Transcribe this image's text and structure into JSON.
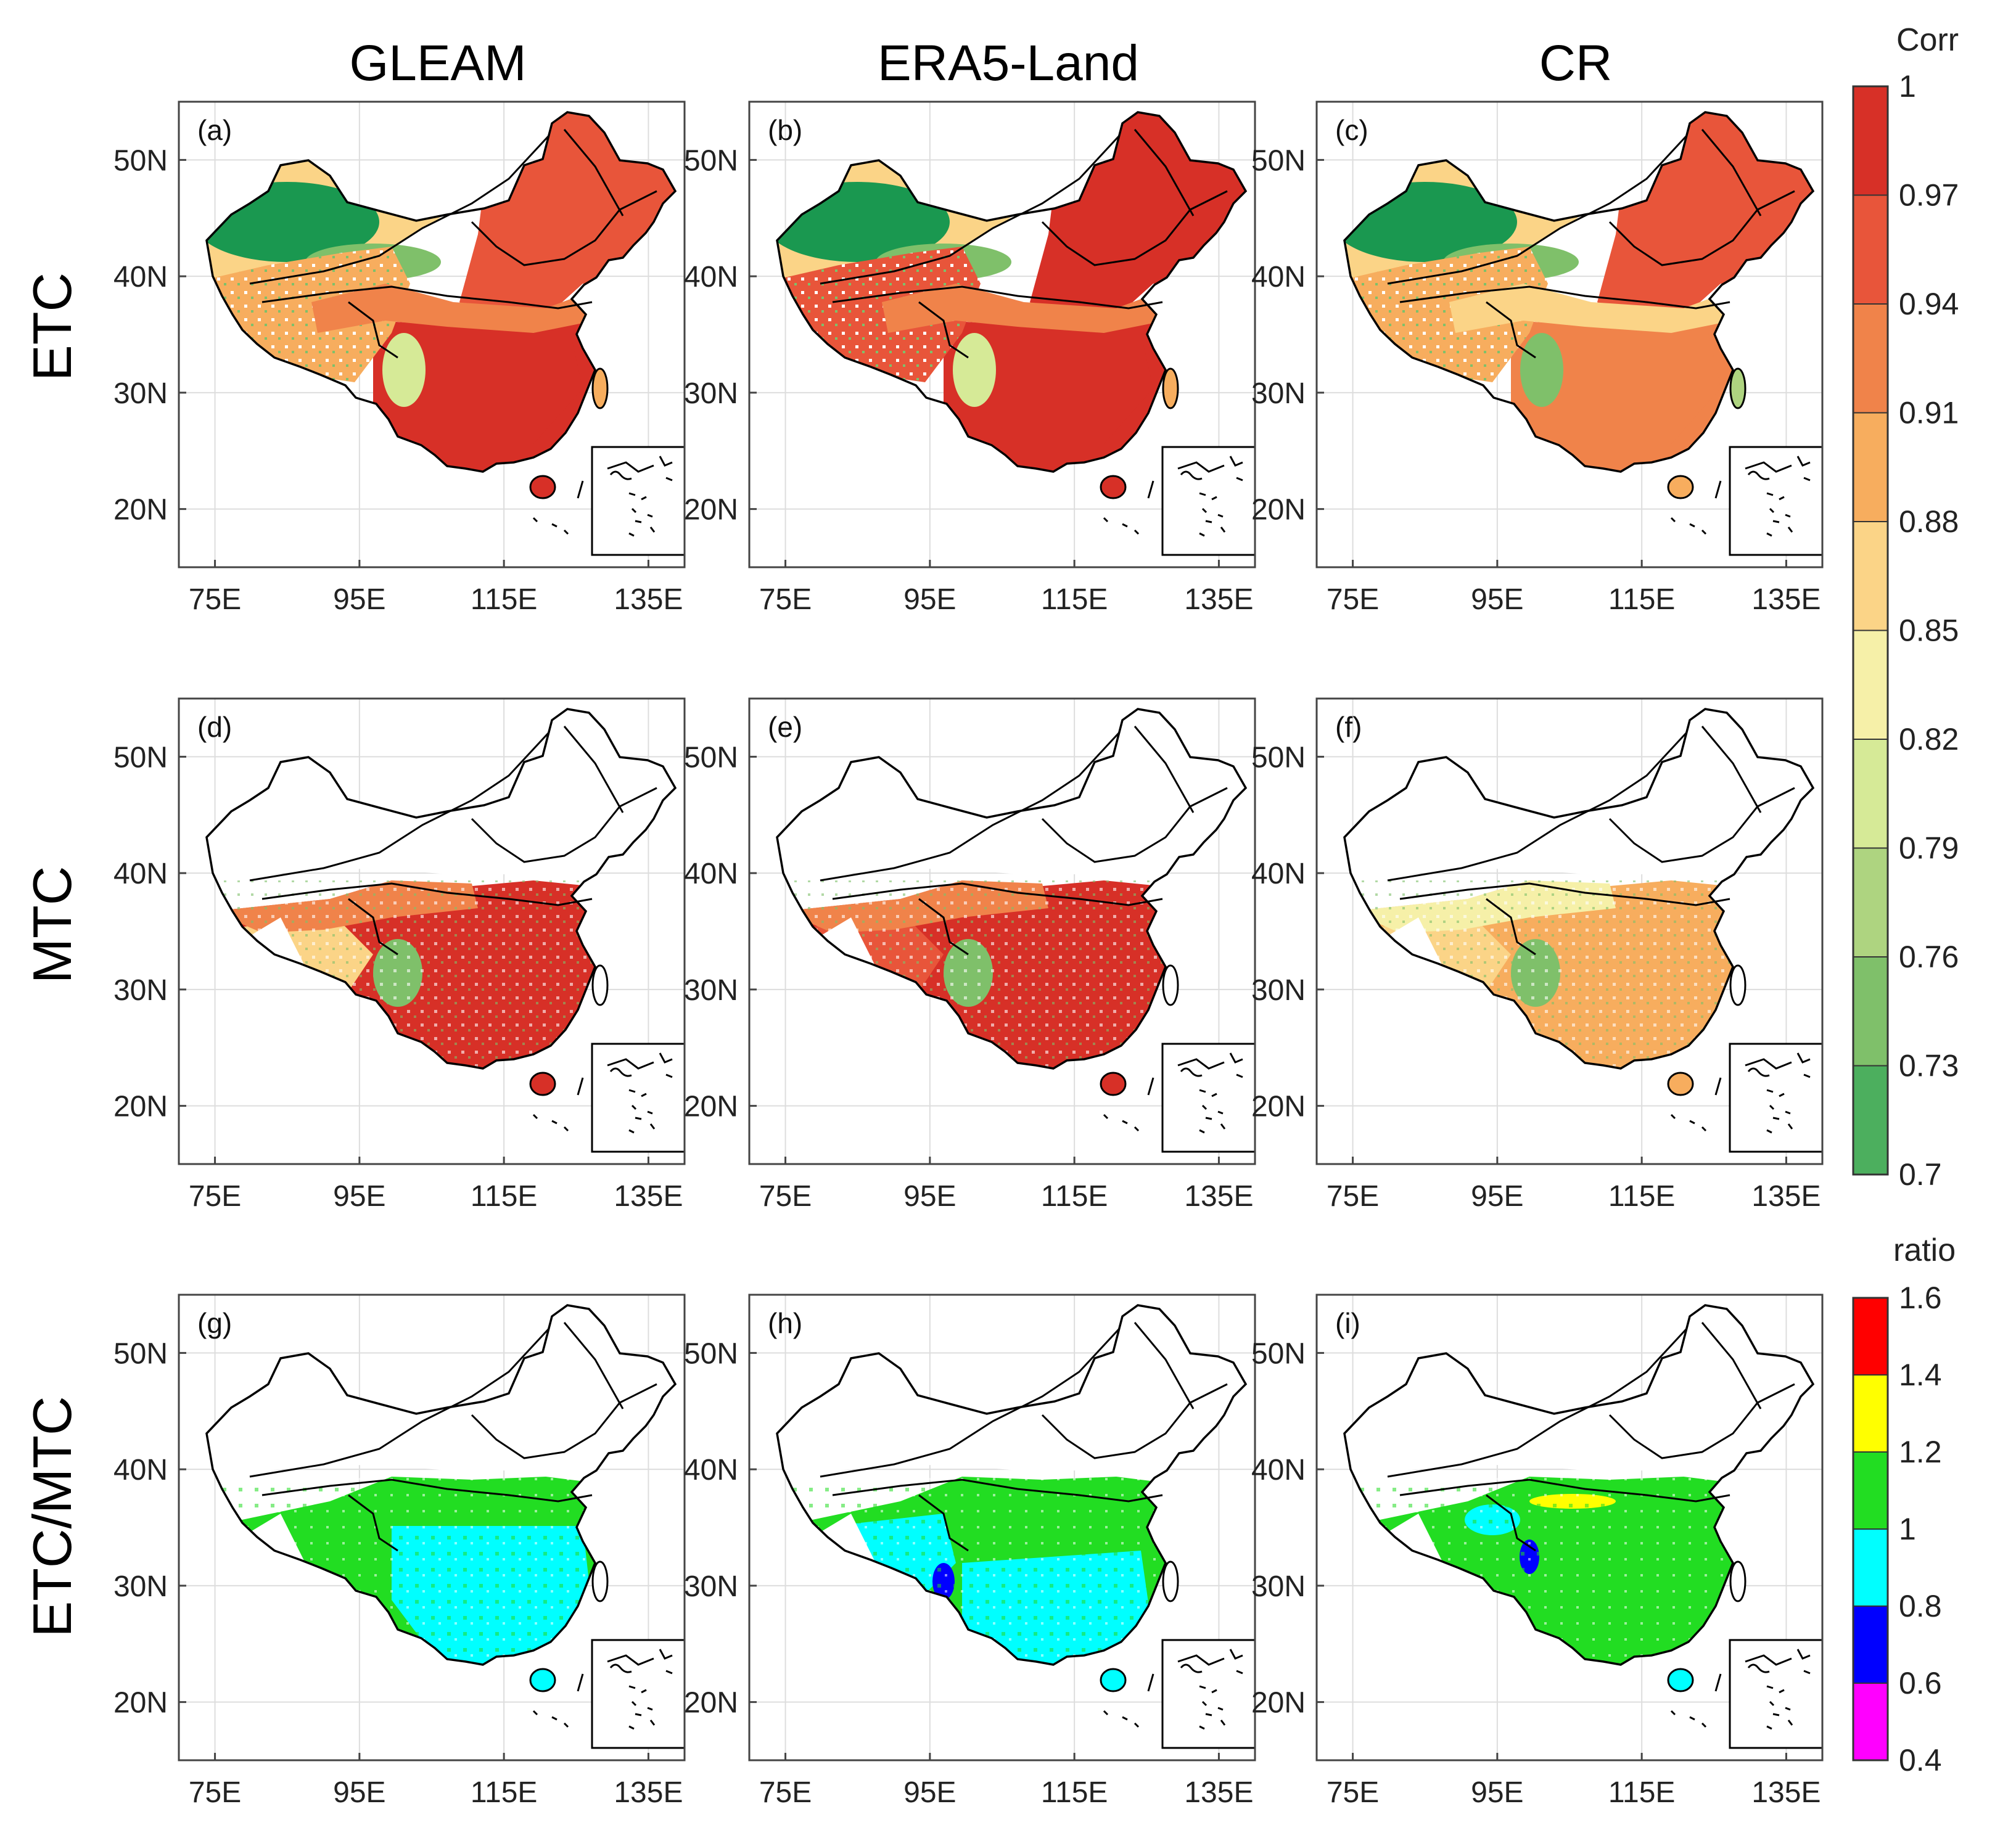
{
  "figure": {
    "column_titles": [
      "GLEAM",
      "ERA5-Land",
      "CR"
    ],
    "row_titles": [
      "ETC",
      "MTC",
      "ETC/MTC"
    ],
    "panel_labels": [
      "(a)",
      "(b)",
      "(c)",
      "(d)",
      "(e)",
      "(f)",
      "(g)",
      "(h)",
      "(i)"
    ],
    "x_ticks": [
      "75E",
      "95E",
      "115E",
      "135E"
    ],
    "y_ticks": [
      "50N",
      "40N",
      "30N",
      "20N"
    ],
    "corr_colorbar": {
      "title": "Corr",
      "ticks": [
        "1",
        "0.97",
        "0.94",
        "0.91",
        "0.88",
        "0.85",
        "0.82",
        "0.79",
        "0.76",
        "0.73",
        "0.7"
      ],
      "colors": [
        "#d73027",
        "#e8553a",
        "#f0834a",
        "#f7ad5e",
        "#fbd487",
        "#f6f0a8",
        "#d6ea97",
        "#aed480",
        "#7fc06a",
        "#4caf5e",
        "#1a9850"
      ]
    },
    "ratio_colorbar": {
      "title": "ratio",
      "ticks": [
        "1.6",
        "1.4",
        "1.2",
        "1",
        "0.8",
        "0.6",
        "0.4"
      ],
      "colors": [
        "#ff0000",
        "#ffff00",
        "#22dd22",
        "#00ffff",
        "#0000ff",
        "#ff00ff"
      ]
    }
  },
  "chart_data": {
    "type": "heatmap",
    "description_axes": {
      "x_range_lon": [
        70,
        140
      ],
      "y_range_lat": [
        15,
        55
      ]
    },
    "row_dominant": {
      "ETC": {
        "GLEAM": "#d73027",
        "ERA5-Land": "#d73027",
        "CR": "#f0834a"
      },
      "MTC": {
        "GLEAM": "#d73027",
        "ERA5-Land": "#d73027",
        "CR": "#f7ad5e"
      },
      "ETC/MTC": {
        "GLEAM": "#22dd22",
        "ERA5-Land": "#22dd22",
        "CR": "#22dd22"
      }
    }
  }
}
